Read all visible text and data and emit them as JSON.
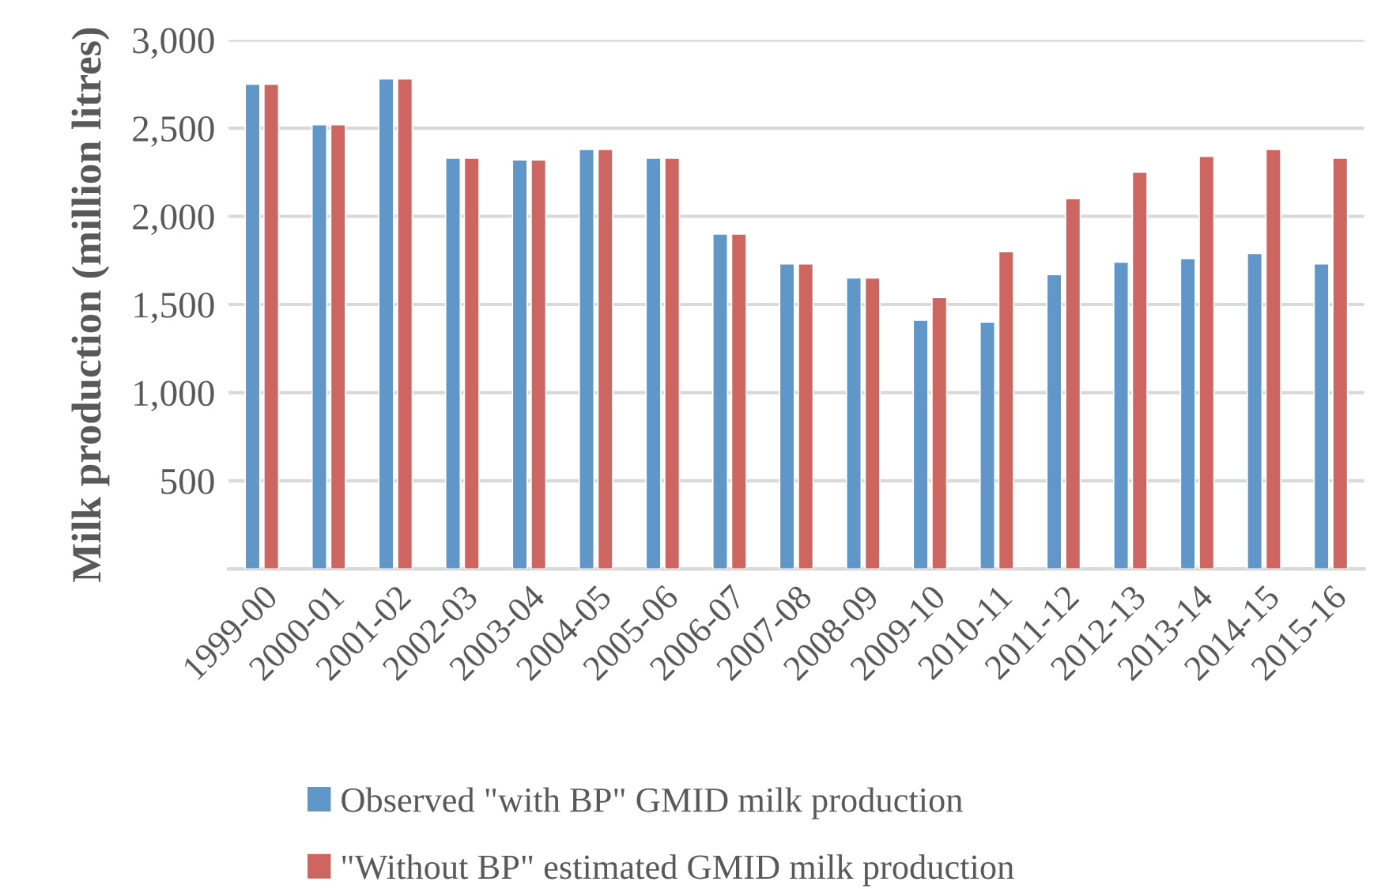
{
  "chart_data": {
    "type": "bar",
    "ylabel": "Milk production (million litres)",
    "categories": [
      "1999-00",
      "2000-01",
      "2001-02",
      "2002-03",
      "2003-04",
      "2004-05",
      "2005-06",
      "2006-07",
      "2007-08",
      "2008-09",
      "2009-10",
      "2010-11",
      "2011-12",
      "2012-13",
      "2013-14",
      "2014-15",
      "2015-16"
    ],
    "series": [
      {
        "name": "Observed \"with BP\" GMID milk production",
        "color": "#6096c8",
        "values": [
          2750,
          2520,
          2780,
          2330,
          2320,
          2380,
          2330,
          1900,
          1730,
          1650,
          1410,
          1400,
          1670,
          1740,
          1760,
          1790,
          1730
        ]
      },
      {
        "name": "\"Without BP\" estimated GMID milk production",
        "color": "#cd6660",
        "values": [
          2750,
          2520,
          2780,
          2330,
          2320,
          2380,
          2330,
          1900,
          1730,
          1650,
          1540,
          1800,
          2100,
          2250,
          2340,
          2380,
          2330
        ]
      }
    ],
    "ylim": [
      0,
      3000
    ],
    "yticks": [
      {
        "value": 0,
        "label": null
      },
      {
        "value": 500,
        "label": "500"
      },
      {
        "value": 1000,
        "label": "1,000"
      },
      {
        "value": 1500,
        "label": "1,500"
      },
      {
        "value": 2000,
        "label": "2,000"
      },
      {
        "value": 2500,
        "label": "2,500"
      },
      {
        "value": 3000,
        "label": "3,000"
      }
    ],
    "grid": "y",
    "legend": "bottom"
  }
}
